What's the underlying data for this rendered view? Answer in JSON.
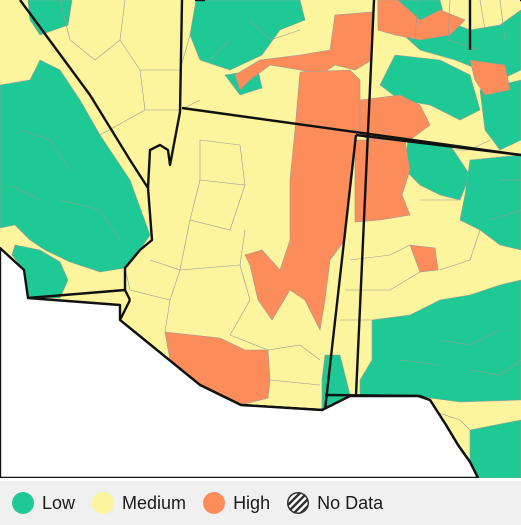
{
  "map": {
    "colors": {
      "low": "#1fc995",
      "medium": "#fcf59d",
      "high": "#fc8d5b",
      "background": "#ffffff",
      "county_border": "#9a9a9a",
      "state_border": "#111111"
    }
  },
  "legend": {
    "items": [
      {
        "key": "low",
        "label": "Low",
        "color": "#1fc995",
        "icon": "circle-swatch"
      },
      {
        "key": "medium",
        "label": "Medium",
        "color": "#fcf59d",
        "icon": "circle-swatch"
      },
      {
        "key": "high",
        "label": "High",
        "color": "#fc8d5b",
        "icon": "circle-swatch"
      },
      {
        "key": "no_data",
        "label": "No Data",
        "color": "#333333",
        "icon": "hatched-circle-swatch"
      }
    ]
  }
}
